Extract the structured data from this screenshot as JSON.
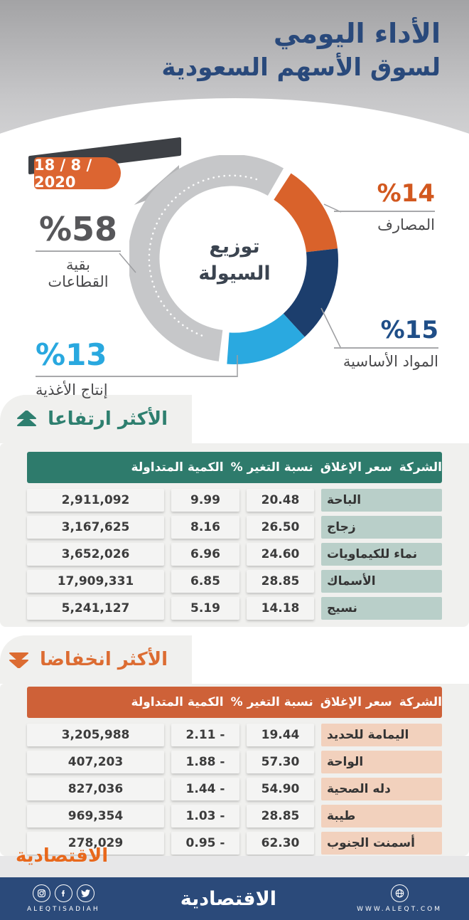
{
  "header": {
    "title_line1": "الأداء اليومي",
    "title_line2": "لسوق الأسهم السعودية",
    "date": "18 / 8 / 2020"
  },
  "chart_data": {
    "type": "pie",
    "donut": true,
    "title": "توزيع السيولة",
    "center_line1": "توزيع",
    "center_line2": "السيولة",
    "start_angle_deg": 33,
    "legend_position": "callouts",
    "segments": [
      {
        "label": "المصارف",
        "value": 14,
        "pct_display": "%14",
        "color": "#d9622b"
      },
      {
        "label": "المواد الأساسية",
        "value": 15,
        "pct_display": "%15",
        "color": "#1c3e6d"
      },
      {
        "label": "إنتاج الأغذية",
        "value": 13,
        "pct_display": "%13",
        "color": "#2aa9e0"
      },
      {
        "label": "بقية القطاعات",
        "value": 58,
        "pct_display": "%58",
        "color": "#c6c7c9"
      }
    ]
  },
  "gainers": {
    "section_title": "الأكثر ارتفاعا",
    "accent": "#2e7b6c",
    "row_tint": "#b9cfc9",
    "columns": [
      "الشركة",
      "سعر الإغلاق",
      "نسبة التغير %",
      "الكمية المتداولة"
    ],
    "rows": [
      {
        "company": "الباحة",
        "close": "20.48",
        "change": "9.99",
        "volume": "2,911,092"
      },
      {
        "company": "زجاج",
        "close": "26.50",
        "change": "8.16",
        "volume": "3,167,625"
      },
      {
        "company": "نماء للكيماويات",
        "close": "24.60",
        "change": "6.96",
        "volume": "3,652,026"
      },
      {
        "company": "الأسماك",
        "close": "28.85",
        "change": "6.85",
        "volume": "17,909,331"
      },
      {
        "company": "نسيج",
        "close": "14.18",
        "change": "5.19",
        "volume": "5,241,127"
      }
    ]
  },
  "losers": {
    "section_title": "الأكثر انخفاضا",
    "accent": "#ce6138",
    "row_tint": "#f2d1bd",
    "columns": [
      "الشركة",
      "سعر الإغلاق",
      "نسبة التغير %",
      "الكمية المتداولة"
    ],
    "rows": [
      {
        "company": "اليمامة للحديد",
        "close": "19.44",
        "change": "2.11 -",
        "volume": "3,205,988"
      },
      {
        "company": "الواحة",
        "close": "57.30",
        "change": "1.88 -",
        "volume": "407,203"
      },
      {
        "company": "دله الصحية",
        "close": "54.90",
        "change": "1.44 -",
        "volume": "827,036"
      },
      {
        "company": "طيبة",
        "close": "28.85",
        "change": "1.03 -",
        "volume": "969,354"
      },
      {
        "company": "أسمنت الجنوب",
        "close": "62.30",
        "change": "0.95 -",
        "volume": "278,029"
      }
    ]
  },
  "footer": {
    "watermark": "الاقتصادية",
    "logo": "الاقتصادية",
    "social_handle": "ALEQTISADIAH",
    "website": "WWW.ALEQT.COM"
  },
  "colors": {
    "header_navy": "#29497b",
    "date_badge_orange": "#dc6531",
    "footer_navy": "#2b4a7a",
    "card_gray": "#f0f0ee"
  }
}
